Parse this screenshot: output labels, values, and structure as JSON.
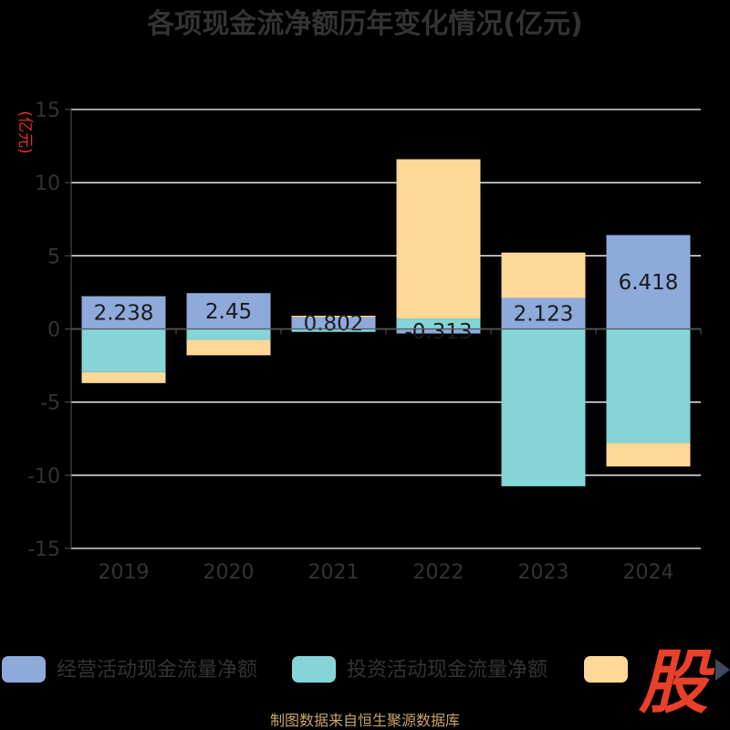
{
  "chart_data": {
    "type": "bar",
    "stacked": true,
    "title": "各项现金流净额历年变化情况(亿元)",
    "unit_label": "(亿元)",
    "categories": [
      "2019",
      "2020",
      "2021",
      "2022",
      "2023",
      "2024"
    ],
    "ylim": [
      -15,
      15
    ],
    "yticks": [
      15,
      10,
      5,
      0,
      -5,
      -10,
      -15
    ],
    "grid": true,
    "legend_position": "bottom",
    "series": [
      {
        "name": "经营活动现金流量净额",
        "color": "#8eaadb",
        "values": [
          2.238,
          2.45,
          0.802,
          -0.313,
          2.123,
          6.418
        ],
        "labels": [
          "2.238",
          "2.45",
          "0.802",
          "-0.313",
          "2.123",
          "6.418"
        ]
      },
      {
        "name": "投资活动现金流量净额",
        "color": "#85d4d8",
        "values": [
          -2.95,
          -0.75,
          -0.2,
          0.7,
          -10.75,
          -7.8
        ]
      },
      {
        "name": "",
        "color": "#fed897",
        "values": [
          -0.75,
          -1.05,
          0.1,
          10.9,
          3.1,
          -1.6
        ]
      }
    ]
  },
  "footer": {
    "source": "制图数据来自恒生聚源数据库"
  },
  "colors": {
    "background": "#000000",
    "text": "#333333",
    "axis": "#555555",
    "grid": "#ffffff",
    "unit": "#e23028",
    "footer": "#c9a46a",
    "logo": "#e8402a"
  },
  "watermark": {
    "text": "股"
  }
}
